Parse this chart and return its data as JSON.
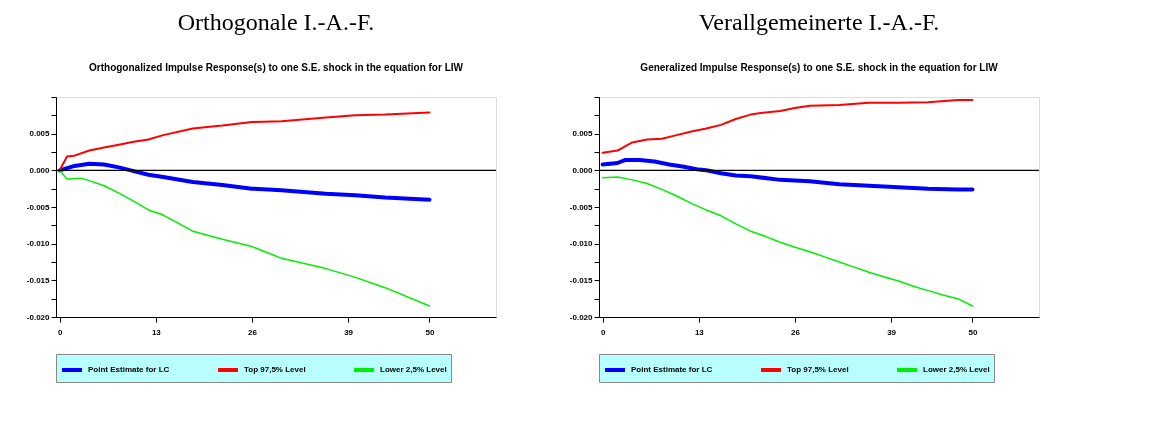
{
  "chart_data": [
    {
      "type": "line",
      "title": "Orthogonale I.-A.-F.",
      "subtitle": "Orthogonalized Impulse Response(s) to one S.E. shock in the equation for LIW",
      "xlim": [
        -0.5,
        59
      ],
      "xticks": [
        0,
        13,
        26,
        39,
        50
      ],
      "ylim": [
        -0.02,
        0.01
      ],
      "yticks": [
        {
          "value": -0.02,
          "label": "-0.020"
        },
        {
          "value": -0.0175,
          "label": null
        },
        {
          "value": -0.015,
          "label": "-0.015"
        },
        {
          "value": -0.0125,
          "label": null
        },
        {
          "value": -0.01,
          "label": "-0.010"
        },
        {
          "value": -0.0075,
          "label": null
        },
        {
          "value": -0.005,
          "label": "-0.005"
        },
        {
          "value": -0.0025,
          "label": null
        },
        {
          "value": 0,
          "label": "0.000"
        },
        {
          "value": 0.0025,
          "label": null
        },
        {
          "value": 0.005,
          "label": "0.005"
        },
        {
          "value": 0.0075,
          "label": null
        },
        {
          "value": 0.01,
          "label": null
        }
      ],
      "grid": false,
      "legend": "bottom",
      "marker": "none",
      "line_style": "solid",
      "ref_lines": [
        {
          "axis": "y",
          "value": 0,
          "label": null,
          "color": "#000000"
        }
      ],
      "series": [
        {
          "name": "Point Estimate for LC",
          "color": "#0000ff",
          "x": [
            0,
            1,
            2,
            4,
            6,
            8,
            10,
            12,
            14,
            18,
            22,
            26,
            30,
            36,
            40,
            44,
            50
          ],
          "values": [
            0,
            0.0003,
            0.0006,
            0.0009,
            0.0008,
            0.0004,
            -0.0001,
            -0.0006,
            -0.0009,
            -0.0016,
            -0.002,
            -0.0025,
            -0.0027,
            -0.0032,
            -0.0034,
            -0.0037,
            -0.004
          ]
        },
        {
          "name": "Top 97,5% Level",
          "color": "#ff0000",
          "x": [
            0,
            1,
            2,
            4,
            6,
            8,
            10,
            12,
            14,
            18,
            22,
            26,
            30,
            36,
            40,
            44,
            50
          ],
          "values": [
            0,
            0.0019,
            0.002,
            0.0027,
            0.0031,
            0.0035,
            0.0039,
            0.0042,
            0.0048,
            0.0057,
            0.0061,
            0.0066,
            0.0067,
            0.0072,
            0.0075,
            0.0076,
            0.0079
          ]
        },
        {
          "name": "Lower 2,5% Level",
          "color": "#00ee00",
          "x": [
            0,
            1,
            2,
            3,
            4,
            6,
            8,
            10,
            12,
            14,
            18,
            22,
            26,
            30,
            36,
            40,
            44,
            50
          ],
          "values": [
            0,
            -0.0012,
            -0.0011,
            -0.0011,
            -0.0014,
            -0.0021,
            -0.0031,
            -0.0042,
            -0.0054,
            -0.0061,
            -0.0083,
            -0.0094,
            -0.0104,
            -0.012,
            -0.0134,
            -0.0146,
            -0.016,
            -0.0185
          ]
        }
      ]
    },
    {
      "type": "line",
      "title": "Verallgemeinerte I.-A.-F.",
      "subtitle": "Generalized Impulse Response(s) to one S.E. shock in the equation for LIW",
      "xlim": [
        -0.5,
        59
      ],
      "xticks": [
        0,
        13,
        26,
        39,
        50
      ],
      "ylim": [
        -0.02,
        0.01
      ],
      "yticks": [
        {
          "value": -0.02,
          "label": "-0.020"
        },
        {
          "value": -0.0175,
          "label": null
        },
        {
          "value": -0.015,
          "label": "-0.015"
        },
        {
          "value": -0.0125,
          "label": null
        },
        {
          "value": -0.01,
          "label": "-0.010"
        },
        {
          "value": -0.0075,
          "label": null
        },
        {
          "value": -0.005,
          "label": "-0.005"
        },
        {
          "value": -0.0025,
          "label": null
        },
        {
          "value": 0,
          "label": "0.000"
        },
        {
          "value": 0.0025,
          "label": null
        },
        {
          "value": 0.005,
          "label": "0.005"
        },
        {
          "value": 0.0075,
          "label": null
        },
        {
          "value": 0.01,
          "label": null
        }
      ],
      "grid": false,
      "legend": "bottom",
      "marker": "none",
      "line_style": "solid",
      "ref_lines": [
        {
          "axis": "y",
          "value": 0,
          "label": null,
          "color": "#000000"
        }
      ],
      "series": [
        {
          "name": "Point Estimate for LC",
          "color": "#0000ff",
          "x": [
            0,
            2,
            3,
            5,
            7,
            9,
            11,
            13,
            14,
            16,
            18,
            20,
            24,
            28,
            32,
            36,
            40,
            44,
            48,
            50
          ],
          "values": [
            0.0008,
            0.001,
            0.0014,
            0.0014,
            0.0012,
            0.0008,
            0.0005,
            0.0001,
            0,
            -0.0004,
            -0.0007,
            -0.0008,
            -0.0013,
            -0.0015,
            -0.0019,
            -0.0021,
            -0.0023,
            -0.0025,
            -0.0026,
            -0.0026
          ]
        },
        {
          "name": "Top 97,5% Level",
          "color": "#ff0000",
          "x": [
            0,
            2,
            4,
            6,
            8,
            10,
            12,
            14,
            16,
            18,
            20,
            22,
            24,
            26,
            28,
            32,
            36,
            40,
            44,
            48,
            50
          ],
          "values": [
            0.0024,
            0.0027,
            0.0038,
            0.0042,
            0.0043,
            0.0048,
            0.0053,
            0.0057,
            0.0062,
            0.007,
            0.0076,
            0.0079,
            0.0081,
            0.0085,
            0.0088,
            0.0089,
            0.0092,
            0.0092,
            0.0093,
            0.0096,
            0.0096
          ]
        },
        {
          "name": "Lower 2,5% Level",
          "color": "#00ee00",
          "x": [
            0,
            2,
            4,
            6,
            8,
            10,
            12,
            14,
            16,
            18,
            20,
            22,
            24,
            26,
            28,
            30,
            32,
            34,
            36,
            38,
            40,
            42,
            44,
            46,
            48,
            50
          ],
          "values": [
            -0.001,
            -0.0009,
            -0.0013,
            -0.0018,
            -0.0026,
            -0.0035,
            -0.0045,
            -0.0054,
            -0.0062,
            -0.0073,
            -0.0083,
            -0.009,
            -0.0098,
            -0.0105,
            -0.0111,
            -0.0118,
            -0.0125,
            -0.0132,
            -0.0139,
            -0.0145,
            -0.0151,
            -0.0158,
            -0.0164,
            -0.017,
            -0.0175,
            -0.0185
          ]
        }
      ]
    }
  ]
}
